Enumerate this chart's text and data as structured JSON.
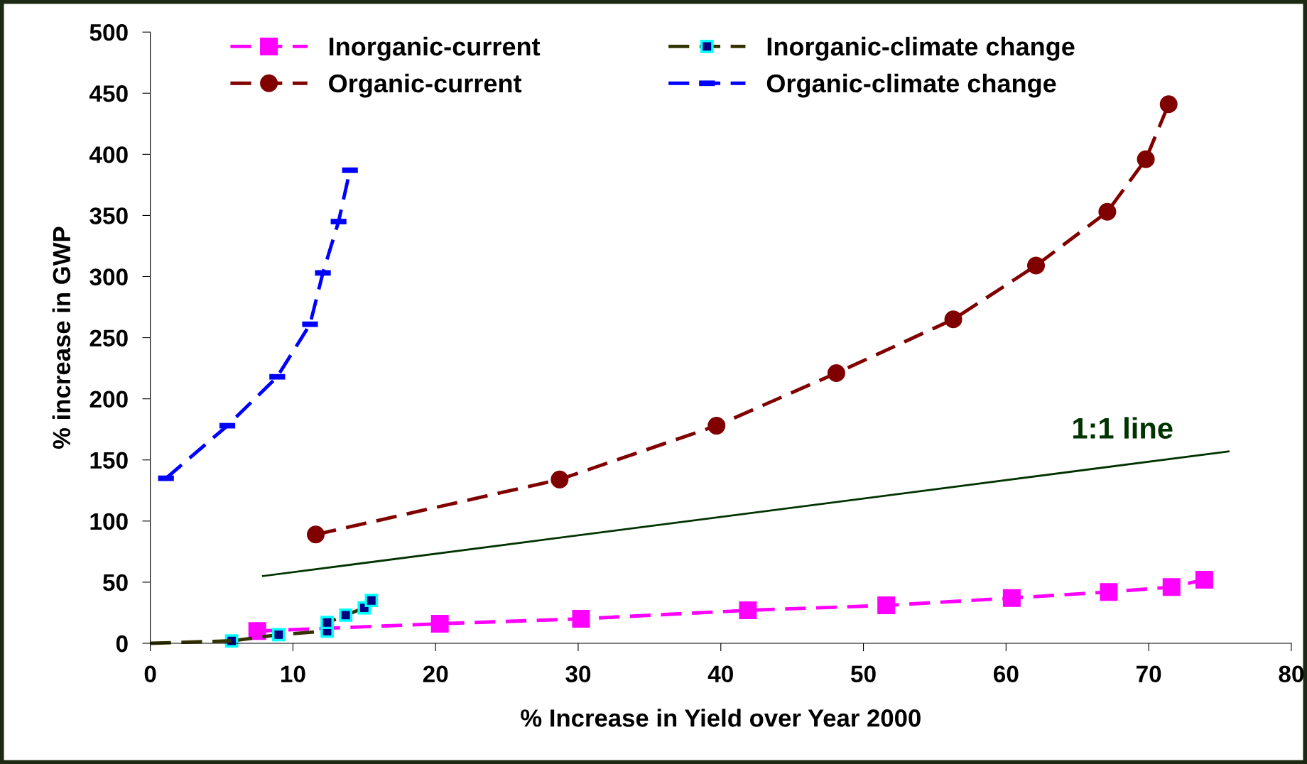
{
  "chart_data": {
    "type": "line",
    "xlabel": "% Increase in Yield over Year 2000",
    "ylabel": "% increase in GWP",
    "xlim": [
      0,
      80
    ],
    "ylim": [
      0,
      500
    ],
    "xticks": [
      0,
      10,
      20,
      30,
      40,
      50,
      60,
      70,
      80
    ],
    "yticks": [
      0,
      50,
      100,
      150,
      200,
      250,
      300,
      350,
      400,
      450,
      500
    ],
    "grid": false,
    "legend": "top",
    "line_style": "dashed",
    "series": [
      {
        "name": "Inorganic-current",
        "color": "#ff00ff",
        "marker": "square",
        "x": [
          7.5,
          20.3,
          30.2,
          41.9,
          51.6,
          60.4,
          67.2,
          71.6,
          73.9
        ],
        "values": [
          10,
          16,
          20,
          27,
          31,
          37,
          42,
          46,
          52
        ]
      },
      {
        "name": "Organic-current",
        "color": "#800000",
        "marker": "circle",
        "x": [
          11.6,
          28.7,
          39.7,
          48.1,
          56.3,
          62.1,
          67.1,
          69.8,
          71.4
        ],
        "values": [
          89,
          134,
          178,
          221,
          265,
          309,
          353,
          396,
          441
        ]
      },
      {
        "name": "Inorganic-climate change",
        "color": "#333300",
        "marker": "square",
        "x": [
          5.7,
          9.0,
          12.4,
          12.4,
          13.7,
          15.0,
          15.5
        ],
        "values": [
          2,
          7,
          10,
          17,
          23,
          29,
          35
        ]
      },
      {
        "name": "Organic-climate change",
        "color": "#0000ff",
        "marker": "square",
        "x": [
          1.1,
          5.4,
          8.9,
          11.2,
          12.1,
          13.2,
          14.0
        ],
        "values": [
          135,
          178,
          218,
          261,
          303,
          345,
          387
        ]
      },
      {
        "color": "#333300",
        "marker": "none",
        "x": [
          0,
          5.7
        ],
        "values": [
          0,
          2
        ]
      },
      {
        "color": "#003300",
        "marker": "none",
        "line_style": "solid",
        "x": [
          7.9,
          75.6
        ],
        "values": [
          55,
          157
        ]
      }
    ],
    "annotations": [
      "1:1 line"
    ]
  }
}
